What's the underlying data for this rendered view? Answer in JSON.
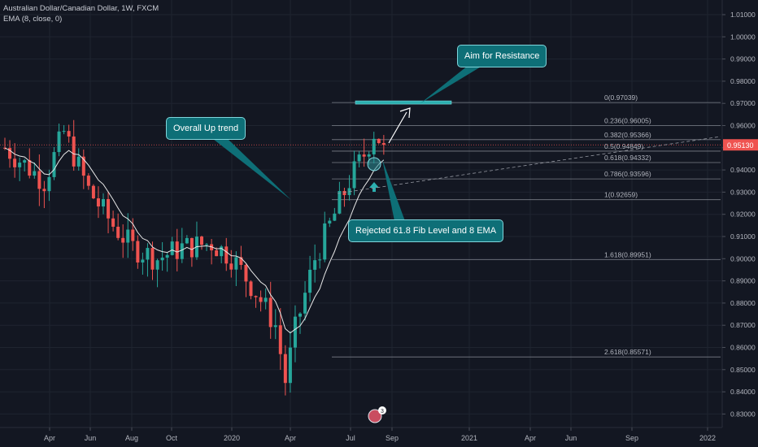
{
  "chart_title": "Australian Dollar/Canadian Dollar, 1W, FXCM",
  "indicator_label": "EMA (8, close, 0)",
  "annotations": {
    "trend": "Overall Up trend",
    "resistance": "Aim for Resistance",
    "rejected": "Rejected 61.8 Fib Level and 8 EMA"
  },
  "events_badge": "3",
  "colors": {
    "bg": "#131722",
    "up": "#26a69a",
    "down": "#ef5350",
    "price": "#ef5350",
    "callout": "#0e6f77"
  },
  "chart_data": {
    "type": "candlestick",
    "title": "Australian Dollar/Canadian Dollar, 1W, FXCM",
    "ylim": [
      0.827,
      1.017
    ],
    "y_ticks": [
      "1.01000",
      "1.00000",
      "0.99000",
      "0.98000",
      "0.97000",
      "0.96000",
      "0.95000",
      "0.94000",
      "0.93000",
      "0.92000",
      "0.91000",
      "0.90000",
      "0.89000",
      "0.88000",
      "0.87000",
      "0.86000",
      "0.85000",
      "0.84000",
      "0.83000"
    ],
    "x_ticks": [
      "Apr",
      "Jun",
      "Aug",
      "Oct",
      "2020",
      "Apr",
      "Jul",
      "Sep",
      "2021",
      "Apr",
      "Jun",
      "Sep",
      "2022"
    ],
    "last_price": 0.9513,
    "last_price_label": "0.95130",
    "fib_levels": [
      {
        "label": "0(0.97039)",
        "value": 0.97039
      },
      {
        "label": "0.236(0.96005)",
        "value": 0.96005
      },
      {
        "label": "0.382(0.95366)",
        "value": 0.95366
      },
      {
        "label": "0.5(0.94849)",
        "value": 0.94849
      },
      {
        "label": "0.618(0.94332)",
        "value": 0.94332
      },
      {
        "label": "0.786(0.93596)",
        "value": 0.93596
      },
      {
        "label": "1(0.92659)",
        "value": 0.92659
      },
      {
        "label": "1.618(0.89951)",
        "value": 0.89951
      },
      {
        "label": "2.618(0.85571)",
        "value": 0.85571
      }
    ],
    "candle_count": 78
  }
}
